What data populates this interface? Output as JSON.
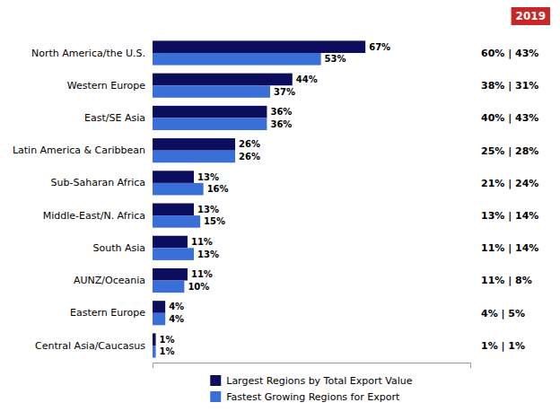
{
  "chart_data": {
    "type": "bar",
    "orientation": "horizontal",
    "subtitle": "2019",
    "categories": [
      "North America/the U.S.",
      "Western Europe",
      "East/SE Asia",
      "Latin America & Caribbean",
      "Sub-Saharan Africa",
      "Middle-East/N. Africa",
      "South Asia",
      "AUNZ/Oceania",
      "Eastern Europe",
      "Central Asia/Caucasus"
    ],
    "series": [
      {
        "name": "Largest Regions by Total Export Value",
        "color": "#0d0d5e",
        "values": [
          67,
          44,
          36,
          26,
          13,
          13,
          11,
          11,
          4,
          1
        ],
        "value_labels": [
          "67%",
          "44%",
          "36%",
          "26%",
          "13%",
          "13%",
          "11%",
          "11%",
          "4%",
          "1%"
        ]
      },
      {
        "name": "Fastest Growing Regions for Export",
        "color": "#3a6fd8",
        "values": [
          53,
          37,
          36,
          26,
          16,
          15,
          13,
          10,
          4,
          1
        ],
        "value_labels": [
          "53%",
          "37%",
          "36%",
          "26%",
          "16%",
          "15%",
          "13%",
          "10%",
          "4%",
          "1%"
        ]
      }
    ],
    "annotations": [
      "60% | 43%",
      "38% | 31%",
      "40% | 43%",
      "25% | 28%",
      "21% | 24%",
      "13% | 14%",
      "11% | 14%",
      "11% | 8%",
      "4% | 5%",
      "1% | 1%"
    ],
    "xlim": [
      0,
      100
    ],
    "data_labels": true,
    "tick_labels": "y",
    "grid": false,
    "legend": "bottom"
  }
}
